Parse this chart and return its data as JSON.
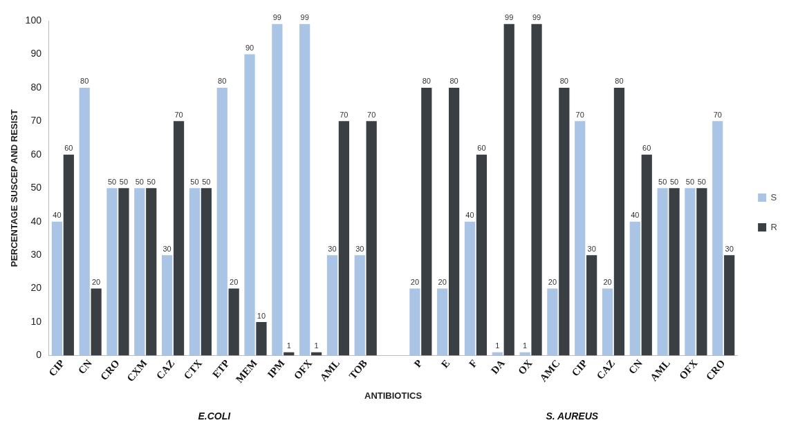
{
  "chart_data": {
    "type": "bar",
    "xlabel": "ANTIBIOTICS",
    "ylabel": "PERCENTAGE SUSCEP AND RESIST",
    "categories": [
      "CIP",
      "CN",
      "CRO",
      "CXM",
      "CAZ",
      "CTX",
      "ETP",
      "MEM",
      "IPM",
      "OFX",
      "AML",
      "TOB",
      null,
      "P",
      "E",
      "F",
      "DA",
      "OX",
      "AMC",
      "CIP",
      "CAZ",
      "CN",
      "AML",
      "OFX",
      "CRO"
    ],
    "series": [
      {
        "name": "S",
        "color": "#a9c4e4",
        "values": [
          40,
          80,
          50,
          50,
          30,
          50,
          80,
          90,
          99,
          99,
          30,
          30,
          null,
          20,
          20,
          40,
          1,
          1,
          20,
          70,
          20,
          40,
          50,
          50,
          70
        ]
      },
      {
        "name": "R",
        "color": "#3a3f44",
        "values": [
          60,
          20,
          50,
          50,
          70,
          50,
          20,
          10,
          1,
          1,
          70,
          70,
          null,
          80,
          80,
          60,
          99,
          99,
          80,
          30,
          80,
          60,
          50,
          50,
          30
        ]
      }
    ],
    "ylim": [
      0,
      100
    ],
    "yticks": [
      0,
      10,
      20,
      30,
      40,
      50,
      60,
      70,
      80,
      90,
      100
    ],
    "data_labels": true,
    "grid": false,
    "legend": "right",
    "annotations": [
      "E.COLI",
      "S. AUREUS"
    ]
  }
}
